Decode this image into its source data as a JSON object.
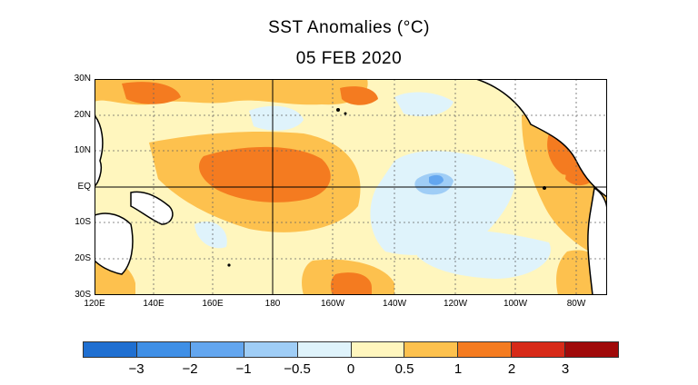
{
  "title": "SST Anomalies (°C)",
  "subtitle": "05 FEB 2020",
  "map": {
    "lat_labels": [
      "30N",
      "20N",
      "10N",
      "EQ",
      "10S",
      "20S",
      "30S"
    ],
    "lon_labels": [
      "120E",
      "140E",
      "160E",
      "180",
      "160W",
      "140W",
      "120W",
      "100W",
      "80W"
    ],
    "gridlines": "dotted",
    "reference_lines": [
      "EQ",
      "180"
    ]
  },
  "colorbar": {
    "colors": [
      "#1f6fd1",
      "#3f8fe6",
      "#63a6ef",
      "#9fcdf6",
      "#dff3fb",
      "#fff6be",
      "#fdc14e",
      "#f47b20",
      "#d72a18",
      "#a00a0a"
    ],
    "labels": [
      "−3",
      "−2",
      "−1",
      "−0.5",
      "0",
      "0.5",
      "1",
      "2",
      "3"
    ]
  }
}
